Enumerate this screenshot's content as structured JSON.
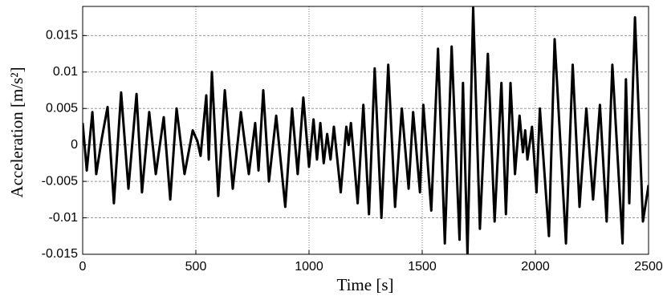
{
  "chart_data": {
    "type": "line",
    "x_label": "Time [s]",
    "y_label": "Acceleration [m/s²]",
    "xlim": [
      0,
      2500
    ],
    "xticks": [
      0,
      500,
      1000,
      1500,
      2000,
      2500
    ],
    "ylim": [
      -0.015,
      0.019
    ],
    "yticks": [
      -0.015,
      -0.01,
      -0.005,
      0,
      0.005,
      0.01,
      0.015
    ],
    "grid": true,
    "series": [
      {
        "color": "#000000",
        "x": [
          0,
          18,
          43,
          60,
          85,
          110,
          138,
          170,
          202,
          238,
          262,
          294,
          323,
          358,
          387,
          415,
          450,
          486,
          507,
          521,
          546,
          557,
          571,
          599,
          628,
          663,
          699,
          734,
          762,
          777,
          798,
          823,
          855,
          895,
          925,
          950,
          975,
          1000,
          1020,
          1035,
          1050,
          1065,
          1080,
          1095,
          1110,
          1140,
          1165,
          1175,
          1185,
          1215,
          1240,
          1265,
          1290,
          1320,
          1350,
          1380,
          1410,
          1440,
          1460,
          1490,
          1505,
          1540,
          1570,
          1600,
          1630,
          1665,
          1680,
          1700,
          1725,
          1755,
          1790,
          1820,
          1850,
          1870,
          1890,
          1910,
          1930,
          1945,
          1955,
          1965,
          1985,
          2005,
          2020,
          2060,
          2085,
          2135,
          2165,
          2195,
          2225,
          2255,
          2285,
          2315,
          2340,
          2385,
          2400,
          2415,
          2440,
          2475,
          2500
        ],
        "values": [
          0.003,
          -0.0035,
          0.0045,
          -0.004,
          0.001,
          0.0052,
          -0.008,
          0.0072,
          -0.006,
          0.007,
          -0.0065,
          0.0045,
          -0.004,
          0.0038,
          -0.0075,
          0.005,
          -0.004,
          0.002,
          0.0005,
          -0.0015,
          0.0068,
          -0.002,
          0.01,
          -0.007,
          0.0075,
          -0.006,
          0.0045,
          -0.004,
          0.003,
          -0.0035,
          0.0075,
          -0.005,
          0.004,
          -0.0085,
          0.005,
          -0.004,
          0.0065,
          -0.003,
          0.0035,
          -0.002,
          0.003,
          -0.0025,
          0.0015,
          -0.002,
          0.0025,
          -0.0065,
          0.0025,
          0,
          0.003,
          -0.008,
          0.0055,
          -0.0095,
          0.0105,
          -0.01,
          0.011,
          -0.0085,
          0.005,
          -0.006,
          0.0045,
          -0.0065,
          0.0055,
          -0.009,
          0.0132,
          -0.0135,
          0.0135,
          -0.013,
          0.0085,
          -0.015,
          0.0188,
          -0.0115,
          0.0125,
          -0.0105,
          0.0085,
          -0.0095,
          0.0085,
          -0.004,
          0.004,
          -0.001,
          0.002,
          -0.002,
          0.0025,
          -0.0065,
          0.005,
          -0.0125,
          0.0145,
          -0.0135,
          0.011,
          -0.0085,
          0.005,
          -0.0075,
          0.0055,
          -0.0105,
          0.011,
          -0.0135,
          0.009,
          -0.008,
          0.0175,
          -0.0105,
          -0.0055
        ]
      }
    ]
  }
}
